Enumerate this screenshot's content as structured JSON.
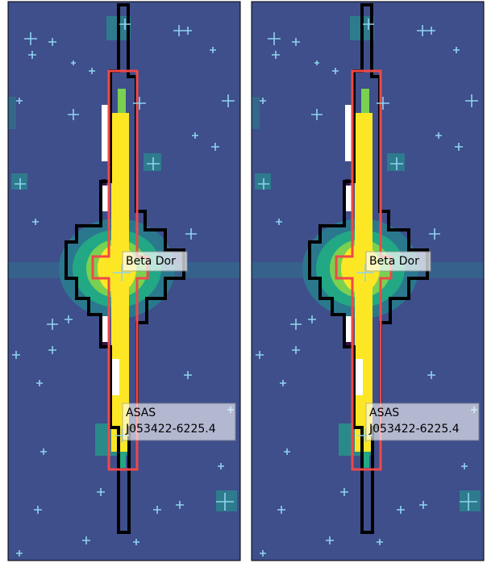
{
  "panels": [
    {
      "target_label": "Beta Dor",
      "neighbor_label": [
        "ASAS",
        "J053422-6225.4"
      ]
    },
    {
      "target_label": "Beta Dor",
      "neighbor_label": [
        "ASAS",
        "J053422-6225.4"
      ]
    }
  ]
}
